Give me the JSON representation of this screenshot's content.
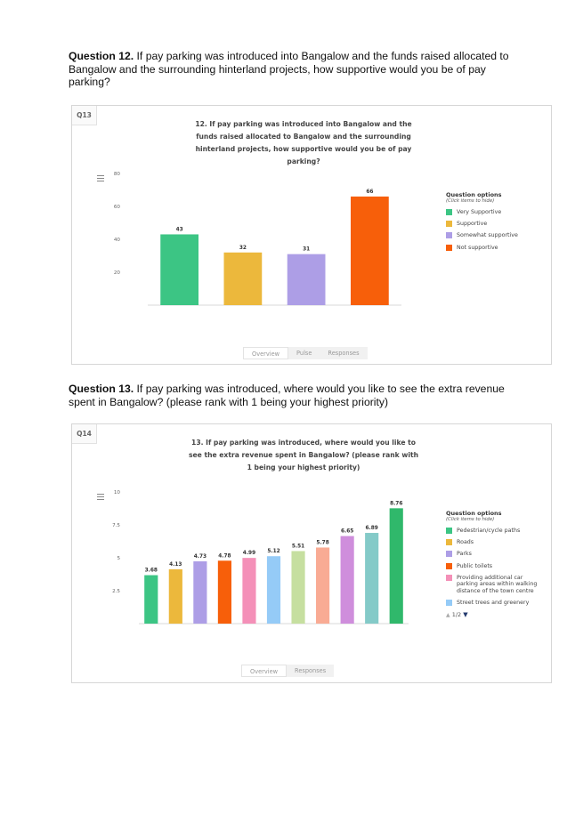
{
  "q12": {
    "label": "Question 12.",
    "text": " If pay parking was introduced into Bangalow and the funds raised allocated to Bangalow and the surrounding hinterland projects, how supportive would you be of pay parking?"
  },
  "q13": {
    "label": "Question 13.",
    "text": " If pay parking was introduced, where would you like to see the extra revenue spent in Bangalow? (please rank with 1 being your highest priority)"
  },
  "panel1": {
    "tag": "Q13",
    "title": "12. If pay parking was introduced into Bangalow and the funds raised allocated to Bangalow and the surrounding hinterland projects, how supportive would you be of pay parking?",
    "legend_title": "Question options",
    "legend_hint": "(Click items to hide)",
    "tabs": [
      "Overview",
      "Pulse",
      "Responses"
    ]
  },
  "panel2": {
    "tag": "Q14",
    "title": "13. If pay parking was introduced, where would you like to see the extra revenue spent in Bangalow? (please rank with 1 being your highest priority)",
    "legend_title": "Question options",
    "legend_hint": "(Click items to hide)",
    "legend_pager": "1/2",
    "tabs": [
      "Overview",
      "Responses"
    ]
  },
  "chart_data": [
    {
      "type": "bar",
      "title": "12. If pay parking was introduced into Bangalow and the funds raised allocated to Bangalow and the surrounding hinterland projects, how supportive would you be of pay parking?",
      "categories": [
        "Very Supportive",
        "Supportive",
        "Somewhat supportive",
        "Not supportive"
      ],
      "values": [
        43,
        32,
        31,
        66
      ],
      "colors": [
        "#3cc584",
        "#ecb83c",
        "#ad9ee6",
        "#f75f0a"
      ],
      "yticks": [
        "80",
        "60",
        "40",
        "20"
      ],
      "ylim": [
        0,
        80
      ],
      "grid": false,
      "legend": "right"
    },
    {
      "type": "bar",
      "title": "13. If pay parking was introduced, where would you like to see the extra revenue spent in Bangalow? (please rank with 1 being your highest priority)",
      "categories": [
        "",
        "",
        "",
        "",
        "",
        "",
        "",
        "",
        "",
        "",
        ""
      ],
      "values": [
        3.68,
        4.13,
        4.73,
        4.78,
        4.99,
        5.12,
        5.51,
        5.78,
        6.65,
        6.89,
        8.76
      ],
      "colors": [
        "#3cc584",
        "#ecb83c",
        "#ad9ee6",
        "#f75f0a",
        "#f490b8",
        "#95cbf7",
        "#c6dfa0",
        "#f9ab94",
        "#cf8edc",
        "#84cac8",
        "#30b86b"
      ],
      "legend_entries": [
        "Pedestrian/cycle paths",
        "Roads",
        "Parks",
        "Public toilets",
        "Providing additional car parking areas within walking distance of the town centre",
        "Street trees and greenery"
      ],
      "yticks": [
        "10",
        "7.5",
        "5",
        "2.5"
      ],
      "ylim": [
        0,
        10
      ],
      "grid": false,
      "legend": "right"
    }
  ]
}
